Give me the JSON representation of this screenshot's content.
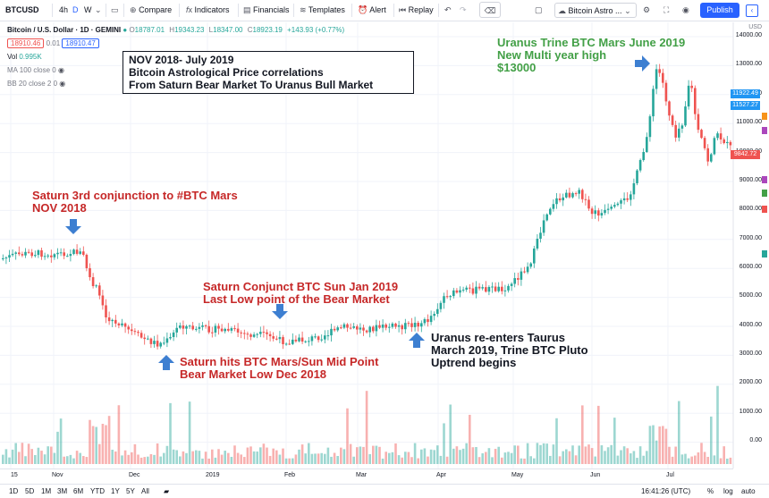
{
  "toolbar": {
    "symbol": "BTCUSD",
    "intervals": [
      "4h",
      "D",
      "W"
    ],
    "selected_interval": "D",
    "compare": "Compare",
    "indicators": "Indicators",
    "financials": "Financials",
    "templates": "Templates",
    "alert": "Alert",
    "replay": "Replay",
    "layout_name": "Bitcoin Astro ...",
    "publish": "Publish"
  },
  "legend": {
    "title": "Bitcoin / U.S. Dollar · 1D · GEMINI",
    "o_label": "O",
    "o": "18787.01",
    "h_label": "H",
    "h": "19343.23",
    "l_label": "L",
    "l": "18347.00",
    "c_label": "C",
    "c": "18923.19",
    "change": "+143.93 (+0.77%)",
    "sell": "18910.46",
    "spread": "0.01",
    "buy": "18910.47",
    "vol_label": "Vol",
    "vol": "0.995K",
    "ma": "MA 100 close 0",
    "bb": "BB 20 close 2 0"
  },
  "annotations": {
    "title_box": [
      "NOV 2018- July 2019",
      "Bitcoin Astrological Price correlations",
      "From Saturn Bear Market To Uranus Bull Market"
    ],
    "uranus_trine": [
      "Uranus Trine BTC Mars June 2019",
      "New Multi year high",
      "$13000"
    ],
    "saturn_3rd": [
      "Saturn 3rd conjunction to #BTC Mars",
      "NOV 2018"
    ],
    "saturn_sun": [
      "Saturn Conjunct BTC Sun Jan 2019",
      "Last Low point of the Bear Market"
    ],
    "saturn_hits": [
      "Saturn hits BTC Mars/Sun Mid Point",
      "Bear Market Low Dec 2018"
    ],
    "uranus_taurus": [
      "Uranus re-enters Taurus",
      "March 2019, Trine BTC Pluto",
      "Uptrend begins"
    ]
  },
  "price_axis": {
    "currency": "USD",
    "labels": [
      "14000.00",
      "13000.00",
      "12000.00",
      "11000.00",
      "10000.00",
      "9000.00",
      "8000.00",
      "7000.00",
      "6000.00",
      "5000.00",
      "4000.00",
      "3000.00",
      "2000.00",
      "1000.00",
      "0.00"
    ],
    "tag_high": "11922.49",
    "tag_mid": "11527.27",
    "tag_last": "9842.72",
    "tag_color_blue": "#2196f3",
    "tag_color_red": "#ef5350"
  },
  "time_axis": [
    "15",
    "Nov",
    "Dec",
    "2019",
    "Feb",
    "Mar",
    "Apr",
    "May",
    "Jun",
    "Jul"
  ],
  "bottom_bar": {
    "ranges": [
      "1D",
      "5D",
      "1M",
      "3M",
      "6M",
      "YTD",
      "1Y",
      "5Y",
      "All"
    ],
    "time": "16:41:26 (UTC)",
    "percent": "%",
    "log": "log",
    "auto": "auto"
  },
  "colors": {
    "up": "#26a69a",
    "down": "#ef5350",
    "ann_red": "#c62828",
    "ann_green": "#43a047",
    "arrow": "#3d7fd1",
    "accent": "#2962ff"
  }
}
